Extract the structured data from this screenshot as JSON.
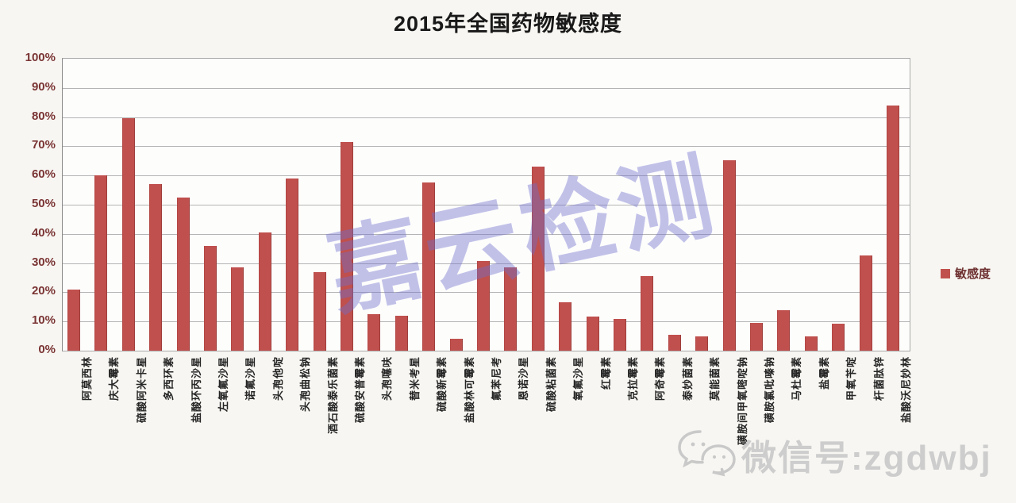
{
  "title": "2015年全国药物敏感度",
  "legend": {
    "label": "敏感度",
    "color": "#c0504d"
  },
  "watermark": {
    "text": "嘉云检测",
    "color": "#6e6ecd"
  },
  "wechat": {
    "icon": "wechat-logo",
    "text": "微信号:zgdwbj"
  },
  "chart_data": {
    "type": "bar",
    "title": "2015年全国药物敏感度",
    "series_name": "敏感度",
    "xlabel": "",
    "ylabel": "",
    "ylim": [
      0,
      100
    ],
    "ytick_labels": [
      "0%",
      "10%",
      "20%",
      "30%",
      "40%",
      "50%",
      "60%",
      "70%",
      "80%",
      "90%",
      "100%"
    ],
    "grid": true,
    "legend_position": "right",
    "bar_color": "#c0504d",
    "categories": [
      "阿莫西林",
      "庆大霉素",
      "硫酸阿米卡星",
      "多西环素",
      "盐酸环丙沙星",
      "左氧氟沙星",
      "诺氟沙星",
      "头孢他啶",
      "头孢曲松钠",
      "酒石酸泰乐菌素",
      "硫酸安普霉素",
      "头孢噻呋",
      "替米考星",
      "硫酸新霉素",
      "盐酸林可霉素",
      "氟苯尼考",
      "恩诺沙星",
      "硫酸粘菌素",
      "氧氟沙星",
      "红霉素",
      "克拉霉素",
      "阿奇霉素",
      "泰妙菌素",
      "莫能菌素",
      "磺胺间甲氧嘧啶钠",
      "磺胺氯吡嗪钠",
      "马杜霉素",
      "盐霉素",
      "甲氧苄啶",
      "杆菌肽锌",
      "盐酸沃尼妙林"
    ],
    "values": [
      21,
      60,
      79.5,
      57,
      52.5,
      36,
      28.5,
      40.5,
      59,
      27,
      71.5,
      12.5,
      12,
      57.5,
      4,
      30.8,
      28.5,
      63,
      16.5,
      11.8,
      11,
      25.5,
      5.3,
      5,
      65.3,
      9.5,
      13.9,
      5,
      9.3,
      32.5,
      84
    ]
  }
}
